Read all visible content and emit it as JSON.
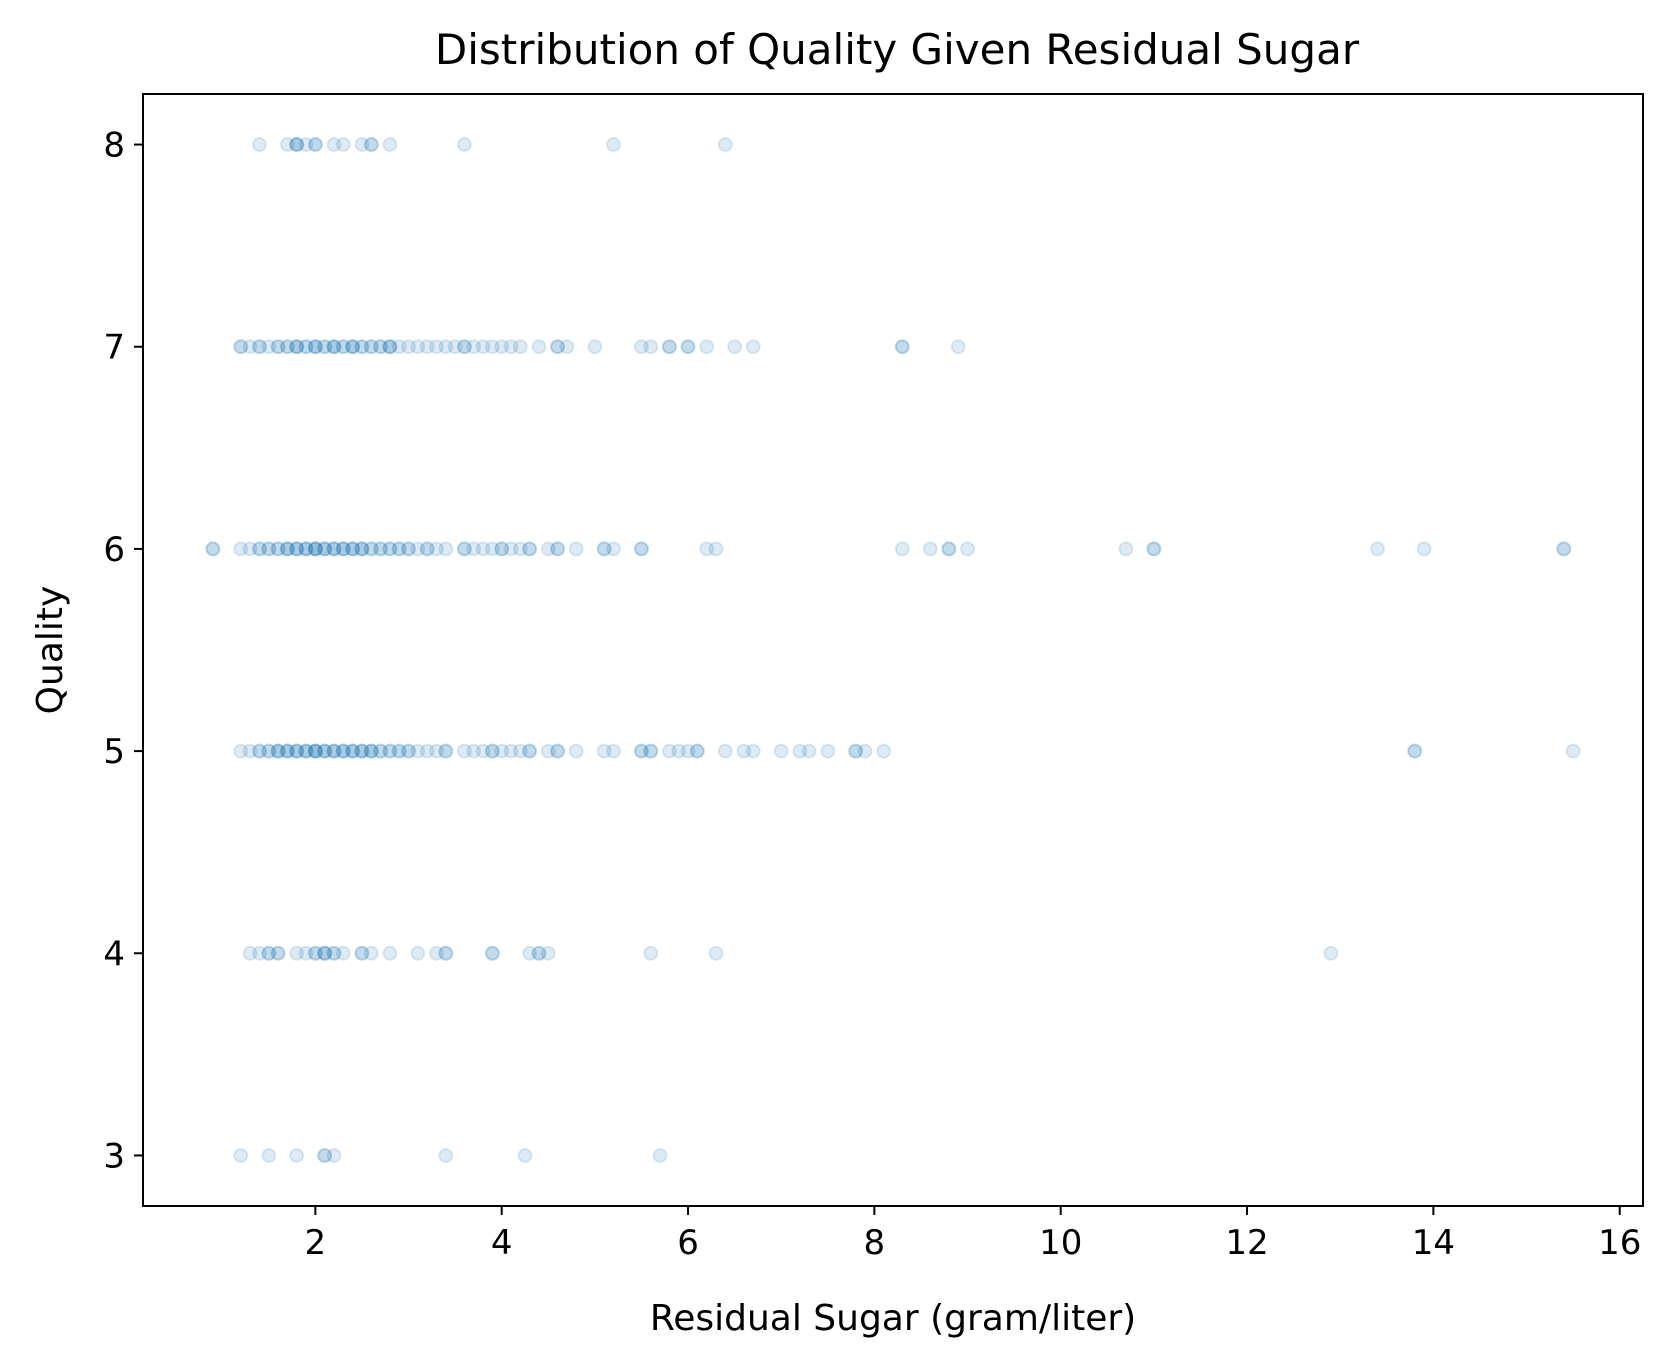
{
  "chart_data": {
    "type": "scatter",
    "title": "Distribution of Quality Given Residual Sugar",
    "xlabel": "Residual Sugar (gram/liter)",
    "ylabel": "Quality",
    "xlim": [
      0.15,
      16.25
    ],
    "ylim": [
      2.75,
      8.25
    ],
    "x_ticks": [
      2,
      4,
      6,
      8,
      10,
      12,
      14,
      16
    ],
    "y_ticks": [
      3,
      4,
      5,
      6,
      7,
      8
    ],
    "grid": false,
    "legend": "none",
    "marker_color": "#1f77b4",
    "marker_alpha": 0.15,
    "points": [
      {
        "quality": 8,
        "residual_sugar": [
          1.4,
          1.7,
          1.8,
          1.8,
          1.8,
          1.9,
          2.0,
          2.0,
          2.2,
          2.3,
          2.5,
          2.6,
          2.6,
          2.8,
          3.6,
          5.2,
          6.4
        ]
      },
      {
        "quality": 7,
        "residual_sugar": [
          1.2,
          1.2,
          1.3,
          1.4,
          1.4,
          1.5,
          1.6,
          1.6,
          1.7,
          1.7,
          1.8,
          1.8,
          1.8,
          1.9,
          1.9,
          2.0,
          2.0,
          2.0,
          2.1,
          2.1,
          2.2,
          2.2,
          2.2,
          2.3,
          2.3,
          2.4,
          2.4,
          2.4,
          2.5,
          2.5,
          2.6,
          2.6,
          2.7,
          2.7,
          2.8,
          2.8,
          2.8,
          2.9,
          3.0,
          3.1,
          3.2,
          3.3,
          3.4,
          3.5,
          3.6,
          3.6,
          3.7,
          3.8,
          3.9,
          4.0,
          4.1,
          4.2,
          4.4,
          4.6,
          4.6,
          4.7,
          5.0,
          5.5,
          5.6,
          5.8,
          5.8,
          6.0,
          6.0,
          6.2,
          6.5,
          6.7,
          8.3,
          8.3,
          8.9
        ]
      },
      {
        "quality": 6,
        "residual_sugar": [
          0.9,
          0.9,
          1.2,
          1.3,
          1.4,
          1.4,
          1.5,
          1.5,
          1.6,
          1.6,
          1.7,
          1.7,
          1.7,
          1.8,
          1.8,
          1.8,
          1.9,
          1.9,
          1.9,
          2.0,
          2.0,
          2.0,
          2.0,
          2.1,
          2.1,
          2.1,
          2.2,
          2.2,
          2.2,
          2.3,
          2.3,
          2.3,
          2.4,
          2.4,
          2.4,
          2.5,
          2.5,
          2.5,
          2.6,
          2.6,
          2.7,
          2.7,
          2.8,
          2.8,
          2.9,
          2.9,
          3.0,
          3.0,
          3.1,
          3.2,
          3.2,
          3.3,
          3.4,
          3.6,
          3.6,
          3.7,
          3.8,
          3.9,
          4.0,
          4.0,
          4.1,
          4.2,
          4.3,
          4.3,
          4.5,
          4.6,
          4.6,
          4.8,
          5.1,
          5.1,
          5.2,
          5.5,
          5.5,
          6.2,
          6.3,
          8.3,
          8.6,
          8.8,
          8.8,
          9.0,
          10.7,
          11.0,
          11.0,
          13.4,
          13.9,
          15.4,
          15.4
        ]
      },
      {
        "quality": 5,
        "residual_sugar": [
          1.2,
          1.3,
          1.4,
          1.4,
          1.5,
          1.5,
          1.6,
          1.6,
          1.6,
          1.7,
          1.7,
          1.7,
          1.8,
          1.8,
          1.8,
          1.9,
          1.9,
          1.9,
          2.0,
          2.0,
          2.0,
          2.0,
          2.1,
          2.1,
          2.1,
          2.2,
          2.2,
          2.2,
          2.3,
          2.3,
          2.3,
          2.4,
          2.4,
          2.4,
          2.5,
          2.5,
          2.5,
          2.6,
          2.6,
          2.6,
          2.7,
          2.7,
          2.8,
          2.8,
          2.9,
          2.9,
          3.0,
          3.0,
          3.1,
          3.2,
          3.3,
          3.4,
          3.4,
          3.6,
          3.7,
          3.8,
          3.9,
          3.9,
          4.0,
          4.1,
          4.2,
          4.3,
          4.3,
          4.5,
          4.6,
          4.6,
          4.8,
          5.1,
          5.2,
          5.5,
          5.5,
          5.6,
          5.6,
          5.8,
          5.9,
          6.0,
          6.1,
          6.1,
          6.4,
          6.6,
          6.7,
          7.0,
          7.2,
          7.3,
          7.5,
          7.8,
          7.8,
          7.9,
          8.1,
          13.8,
          13.8,
          15.5
        ]
      },
      {
        "quality": 4,
        "residual_sugar": [
          1.3,
          1.4,
          1.5,
          1.5,
          1.6,
          1.6,
          1.8,
          1.9,
          2.0,
          2.0,
          2.1,
          2.1,
          2.1,
          2.2,
          2.2,
          2.3,
          2.5,
          2.5,
          2.6,
          2.8,
          3.1,
          3.3,
          3.4,
          3.4,
          3.9,
          3.9,
          4.3,
          4.4,
          4.4,
          4.5,
          5.6,
          6.3,
          12.9
        ]
      },
      {
        "quality": 3,
        "residual_sugar": [
          1.2,
          1.5,
          1.8,
          2.1,
          2.1,
          2.2,
          3.4,
          4.25,
          5.7
        ]
      }
    ]
  }
}
